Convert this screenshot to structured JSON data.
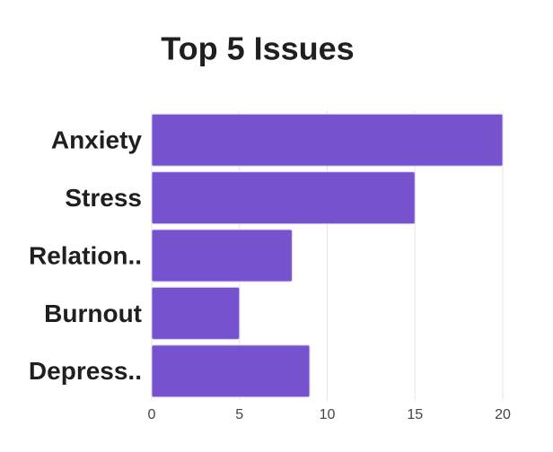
{
  "chart_data": {
    "type": "bar",
    "orientation": "horizontal",
    "title": "Top 5 Issues",
    "categories": [
      "Anxiety",
      "Stress",
      "Relation..",
      "Burnout",
      "Depress.."
    ],
    "values": [
      20,
      15,
      8,
      5,
      9
    ],
    "color": "#7752cf",
    "xlim": [
      0,
      20
    ],
    "xticks": [
      0,
      5,
      10,
      15,
      20
    ],
    "grid": true
  }
}
